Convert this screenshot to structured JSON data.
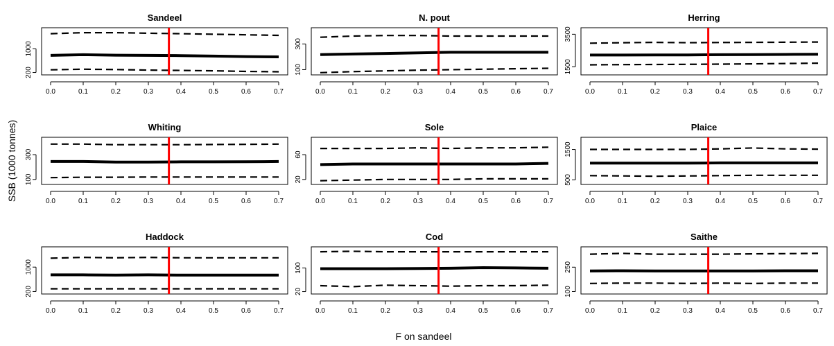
{
  "figure": {
    "xlabel": "F on sandeel",
    "ylabel": "SSB (1000 tonnes)",
    "reference_line_color": "#ff0000",
    "reference_line_x": 0.363
  },
  "chart_data": [
    {
      "type": "line",
      "title": "Sandeel",
      "x_ticks": [
        "0.0",
        "0.1",
        "0.2",
        "0.3",
        "0.4",
        "0.5",
        "0.6",
        "0.7"
      ],
      "xlim": [
        0,
        0.7
      ],
      "y_scale": "log",
      "y_ticks": [
        "200",
        "1000"
      ],
      "ylim": [
        170,
        4200
      ],
      "series": [
        {
          "style": "solid",
          "x": [
            0.0,
            0.1,
            0.2,
            0.3,
            0.4,
            0.5,
            0.6,
            0.7
          ],
          "y": [
            640,
            670,
            650,
            640,
            630,
            610,
            590,
            580
          ]
        },
        {
          "style": "dashed",
          "x": [
            0.0,
            0.1,
            0.2,
            0.3,
            0.4,
            0.5,
            0.6,
            0.7
          ],
          "y": [
            2800,
            3000,
            3000,
            2900,
            2800,
            2700,
            2600,
            2500
          ]
        },
        {
          "style": "dashed",
          "x": [
            0.0,
            0.1,
            0.2,
            0.3,
            0.4,
            0.5,
            0.6,
            0.7
          ],
          "y": [
            240,
            250,
            245,
            235,
            230,
            225,
            215,
            210
          ]
        }
      ]
    },
    {
      "type": "line",
      "title": "N. pout",
      "x_ticks": [
        "0.0",
        "0.1",
        "0.2",
        "0.3",
        "0.4",
        "0.5",
        "0.6",
        "0.7"
      ],
      "xlim": [
        0,
        0.7
      ],
      "y_scale": "log",
      "y_ticks": [
        "100",
        "300"
      ],
      "ylim": [
        80,
        600
      ],
      "series": [
        {
          "style": "solid",
          "x": [
            0.0,
            0.1,
            0.2,
            0.3,
            0.4,
            0.5,
            0.6,
            0.7
          ],
          "y": [
            190,
            195,
            200,
            205,
            210,
            210,
            210,
            210
          ]
        },
        {
          "style": "dashed",
          "x": [
            0.0,
            0.1,
            0.2,
            0.3,
            0.4,
            0.5,
            0.6,
            0.7
          ],
          "y": [
            400,
            420,
            430,
            430,
            420,
            420,
            420,
            420
          ]
        },
        {
          "style": "dashed",
          "x": [
            0.0,
            0.1,
            0.2,
            0.3,
            0.4,
            0.5,
            0.6,
            0.7
          ],
          "y": [
            88,
            92,
            95,
            98,
            100,
            102,
            104,
            106
          ]
        }
      ]
    },
    {
      "type": "line",
      "title": "Herring",
      "x_ticks": [
        "0.0",
        "0.1",
        "0.2",
        "0.3",
        "0.4",
        "0.5",
        "0.6",
        "0.7"
      ],
      "xlim": [
        0,
        0.7
      ],
      "y_scale": "linear",
      "y_ticks": [
        "1500",
        "3500"
      ],
      "ylim": [
        1000,
        3900
      ],
      "series": [
        {
          "style": "solid",
          "x": [
            0.0,
            0.1,
            0.2,
            0.3,
            0.4,
            0.5,
            0.6,
            0.7
          ],
          "y": [
            2220,
            2220,
            2230,
            2230,
            2240,
            2250,
            2260,
            2270
          ]
        },
        {
          "style": "dashed",
          "x": [
            0.0,
            0.1,
            0.2,
            0.3,
            0.4,
            0.5,
            0.6,
            0.7
          ],
          "y": [
            2950,
            2980,
            3000,
            2980,
            2990,
            3000,
            3010,
            3020
          ]
        },
        {
          "style": "dashed",
          "x": [
            0.0,
            0.1,
            0.2,
            0.3,
            0.4,
            0.5,
            0.6,
            0.7
          ],
          "y": [
            1620,
            1630,
            1640,
            1650,
            1660,
            1680,
            1700,
            1720
          ]
        }
      ]
    },
    {
      "type": "line",
      "title": "Whiting",
      "x_ticks": [
        "0.0",
        "0.1",
        "0.2",
        "0.3",
        "0.4",
        "0.5",
        "0.6",
        "0.7"
      ],
      "xlim": [
        0,
        0.7
      ],
      "y_scale": "linear",
      "y_ticks": [
        "100",
        "300"
      ],
      "ylim": [
        60,
        440
      ],
      "series": [
        {
          "style": "solid",
          "x": [
            0.0,
            0.1,
            0.2,
            0.3,
            0.4,
            0.5,
            0.6,
            0.7
          ],
          "y": [
            245,
            245,
            240,
            240,
            242,
            242,
            243,
            245
          ]
        },
        {
          "style": "dashed",
          "x": [
            0.0,
            0.1,
            0.2,
            0.3,
            0.4,
            0.5,
            0.6,
            0.7
          ],
          "y": [
            385,
            385,
            380,
            380,
            380,
            382,
            383,
            385
          ]
        },
        {
          "style": "dashed",
          "x": [
            0.0,
            0.1,
            0.2,
            0.3,
            0.4,
            0.5,
            0.6,
            0.7
          ],
          "y": [
            115,
            118,
            118,
            120,
            120,
            120,
            120,
            120
          ]
        }
      ]
    },
    {
      "type": "line",
      "title": "Sole",
      "x_ticks": [
        "0.0",
        "0.1",
        "0.2",
        "0.3",
        "0.4",
        "0.5",
        "0.6",
        "0.7"
      ],
      "xlim": [
        0,
        0.7
      ],
      "y_scale": "linear",
      "y_ticks": [
        "20",
        "60"
      ],
      "ylim": [
        12,
        88
      ],
      "series": [
        {
          "style": "solid",
          "x": [
            0.0,
            0.1,
            0.2,
            0.3,
            0.4,
            0.5,
            0.6,
            0.7
          ],
          "y": [
            44,
            45,
            45,
            45,
            45,
            45,
            45,
            46
          ]
        },
        {
          "style": "dashed",
          "x": [
            0.0,
            0.1,
            0.2,
            0.3,
            0.4,
            0.5,
            0.6,
            0.7
          ],
          "y": [
            70,
            70,
            70,
            71,
            70,
            71,
            71,
            72
          ]
        },
        {
          "style": "dashed",
          "x": [
            0.0,
            0.1,
            0.2,
            0.3,
            0.4,
            0.5,
            0.6,
            0.7
          ],
          "y": [
            18,
            19,
            20,
            20,
            20,
            21,
            21,
            21
          ]
        }
      ]
    },
    {
      "type": "line",
      "title": "Plaice",
      "x_ticks": [
        "0.0",
        "0.1",
        "0.2",
        "0.3",
        "0.4",
        "0.5",
        "0.6",
        "0.7"
      ],
      "xlim": [
        0,
        0.7
      ],
      "y_scale": "linear",
      "y_ticks": [
        "500",
        "1500"
      ],
      "ylim": [
        350,
        1900
      ],
      "series": [
        {
          "style": "solid",
          "x": [
            0.0,
            0.1,
            0.2,
            0.3,
            0.4,
            0.5,
            0.6,
            0.7
          ],
          "y": [
            1050,
            1050,
            1050,
            1050,
            1060,
            1060,
            1060,
            1060
          ]
        },
        {
          "style": "dashed",
          "x": [
            0.0,
            0.1,
            0.2,
            0.3,
            0.4,
            0.5,
            0.6,
            0.7
          ],
          "y": [
            1500,
            1500,
            1500,
            1500,
            1520,
            1550,
            1520,
            1510
          ]
        },
        {
          "style": "dashed",
          "x": [
            0.0,
            0.1,
            0.2,
            0.3,
            0.4,
            0.5,
            0.6,
            0.7
          ],
          "y": [
            640,
            630,
            620,
            630,
            640,
            650,
            650,
            650
          ]
        }
      ]
    },
    {
      "type": "line",
      "title": "Haddock",
      "x_ticks": [
        "0.0",
        "0.1",
        "0.2",
        "0.3",
        "0.4",
        "0.5",
        "0.6",
        "0.7"
      ],
      "xlim": [
        0,
        0.7
      ],
      "y_scale": "log",
      "y_ticks": [
        "200",
        "1000"
      ],
      "ylim": [
        170,
        3800
      ],
      "series": [
        {
          "style": "solid",
          "x": [
            0.0,
            0.1,
            0.2,
            0.3,
            0.4,
            0.5,
            0.6,
            0.7
          ],
          "y": [
            600,
            600,
            590,
            600,
            590,
            590,
            590,
            590
          ]
        },
        {
          "style": "dashed",
          "x": [
            0.0,
            0.1,
            0.2,
            0.3,
            0.4,
            0.5,
            0.6,
            0.7
          ],
          "y": [
            1800,
            1900,
            1850,
            1900,
            1850,
            1850,
            1850,
            1850
          ]
        },
        {
          "style": "dashed",
          "x": [
            0.0,
            0.1,
            0.2,
            0.3,
            0.4,
            0.5,
            0.6,
            0.7
          ],
          "y": [
            240,
            240,
            240,
            240,
            240,
            240,
            240,
            240
          ]
        }
      ]
    },
    {
      "type": "line",
      "title": "Cod",
      "x_ticks": [
        "0.0",
        "0.1",
        "0.2",
        "0.3",
        "0.4",
        "0.5",
        "0.6",
        "0.7"
      ],
      "xlim": [
        0,
        0.7
      ],
      "y_scale": "log",
      "y_ticks": [
        "20",
        "100"
      ],
      "ylim": [
        17,
        420
      ],
      "series": [
        {
          "style": "solid",
          "x": [
            0.0,
            0.1,
            0.2,
            0.3,
            0.4,
            0.5,
            0.6,
            0.7
          ],
          "y": [
            95,
            95,
            95,
            96,
            98,
            102,
            100,
            98
          ]
        },
        {
          "style": "dashed",
          "x": [
            0.0,
            0.1,
            0.2,
            0.3,
            0.4,
            0.5,
            0.6,
            0.7
          ],
          "y": [
            300,
            310,
            300,
            300,
            300,
            300,
            300,
            300
          ]
        },
        {
          "style": "dashed",
          "x": [
            0.0,
            0.1,
            0.2,
            0.3,
            0.4,
            0.5,
            0.6,
            0.7
          ],
          "y": [
            30,
            28,
            31,
            30,
            29,
            30,
            30,
            31
          ]
        }
      ]
    },
    {
      "type": "line",
      "title": "Saithe",
      "x_ticks": [
        "0.0",
        "0.1",
        "0.2",
        "0.3",
        "0.4",
        "0.5",
        "0.6",
        "0.7"
      ],
      "xlim": [
        0,
        0.7
      ],
      "y_scale": "linear",
      "y_ticks": [
        "100",
        "250"
      ],
      "ylim": [
        85,
        375
      ],
      "series": [
        {
          "style": "solid",
          "x": [
            0.0,
            0.1,
            0.2,
            0.3,
            0.4,
            0.5,
            0.6,
            0.7
          ],
          "y": [
            227,
            228,
            227,
            227,
            227,
            227,
            228,
            228
          ]
        },
        {
          "style": "dashed",
          "x": [
            0.0,
            0.1,
            0.2,
            0.3,
            0.4,
            0.5,
            0.6,
            0.7
          ],
          "y": [
            330,
            335,
            330,
            330,
            330,
            332,
            333,
            335
          ]
        },
        {
          "style": "dashed",
          "x": [
            0.0,
            0.1,
            0.2,
            0.3,
            0.4,
            0.5,
            0.6,
            0.7
          ],
          "y": [
            150,
            152,
            152,
            150,
            152,
            150,
            152,
            152
          ]
        }
      ]
    }
  ]
}
